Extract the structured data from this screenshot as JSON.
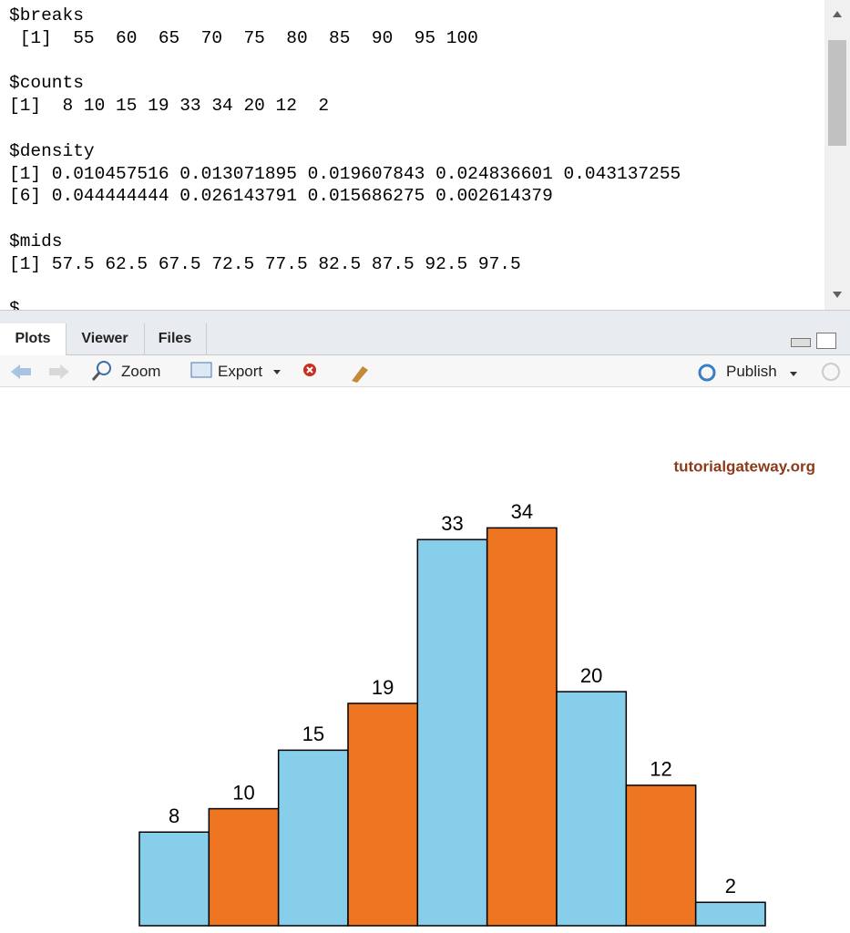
{
  "console": {
    "blocks": [
      {
        "name": "$breaks",
        "lines": [
          " [1]  55  60  65  70  75  80  85  90  95 100"
        ]
      },
      {
        "name": "$counts",
        "lines": [
          "[1]  8 10 15 19 33 34 20 12  2"
        ]
      },
      {
        "name": "$density",
        "lines": [
          "[1] 0.010457516 0.013071895 0.019607843 0.024836601 0.043137255",
          "[6] 0.044444444 0.026143791 0.015686275 0.002614379"
        ]
      },
      {
        "name": "$mids",
        "lines": [
          "[1] 57.5 62.5 67.5 72.5 77.5 82.5 87.5 92.5 97.5"
        ]
      }
    ],
    "clipped": "$"
  },
  "tabs": [
    "Plots",
    "Viewer",
    "Files"
  ],
  "toolbar": {
    "zoom": "Zoom",
    "export": "Export",
    "publish": "Publish"
  },
  "watermark": "tutorialgateway.org",
  "chart_data": {
    "type": "histogram",
    "bins": [
      55,
      60,
      65,
      70,
      75,
      80,
      85,
      90,
      95,
      100
    ],
    "counts": [
      8,
      10,
      15,
      19,
      33,
      34,
      20,
      12,
      2
    ],
    "colors": [
      "#87ceeb",
      "#ee7621"
    ],
    "xlim": [
      55,
      100
    ],
    "ylim": [
      0,
      38
    ],
    "labels": true
  }
}
